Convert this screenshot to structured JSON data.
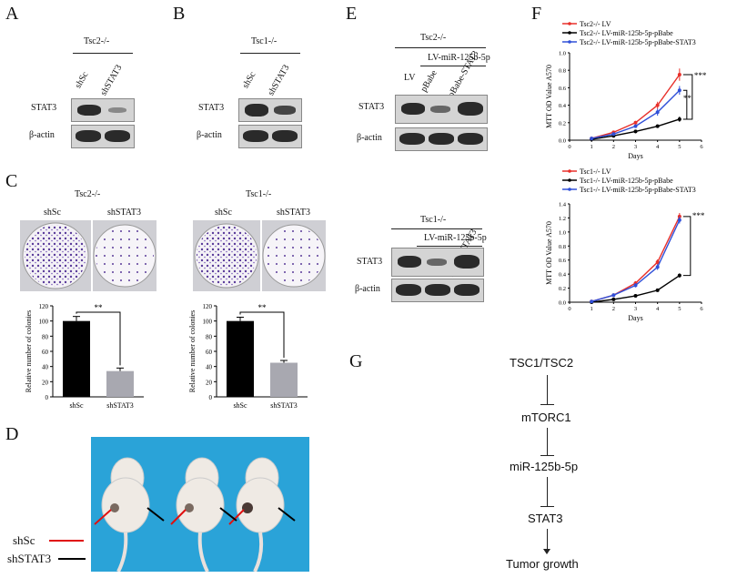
{
  "panels": {
    "A": "A",
    "B": "B",
    "C": "C",
    "D": "D",
    "E": "E",
    "F": "F",
    "G": "G"
  },
  "panelA": {
    "genotype": "Tsc2-/-",
    "lanes": [
      "shSc",
      "shSTAT3"
    ],
    "rows": [
      "STAT3",
      "β-actin"
    ]
  },
  "panelB": {
    "genotype": "Tsc1-/-",
    "lanes": [
      "shSc",
      "shSTAT3"
    ],
    "rows": [
      "STAT3",
      "β-actin"
    ]
  },
  "panelC": {
    "left": {
      "genotype": "Tsc2-/-",
      "dishes": [
        "shSc",
        "shSTAT3"
      ],
      "sig": "**"
    },
    "right": {
      "genotype": "Tsc1-/-",
      "dishes": [
        "shSc",
        "shSTAT3"
      ],
      "sig": "**"
    }
  },
  "panelD": {
    "legend": [
      "shSc",
      "shSTAT3"
    ]
  },
  "panelE": {
    "top": {
      "genotype": "Tsc2-/-",
      "group": "LV-miR-125b-5p",
      "lanes": [
        "LV",
        "pBabe",
        "pBabe-STAT3"
      ],
      "rows": [
        "STAT3",
        "β-actin"
      ]
    },
    "bottom": {
      "genotype": "Tsc1-/-",
      "group": "LV-miR-125b-5p",
      "lanes": [
        "LV",
        "pBabe",
        "pBabe-STAT3"
      ],
      "rows": [
        "STAT3",
        "β-actin"
      ]
    }
  },
  "panelG": {
    "nodes": [
      "TSC1/TSC2",
      "mTORC1",
      "miR-125b-5p",
      "STAT3",
      "Tumor growth"
    ]
  },
  "colors": {
    "shSc_bar": "#000000",
    "shSTAT3_bar": "#a8a8b0",
    "lv": "#e8302a",
    "pbabe": "#000000",
    "stat3": "#3050d8",
    "mouse_bg": "#2aa3d8",
    "red_arrow": "#e01010"
  },
  "chart_data": [
    {
      "id": "C-left",
      "type": "bar",
      "categories": [
        "shSc",
        "shSTAT3"
      ],
      "values": [
        100,
        34
      ],
      "errors": [
        6,
        4
      ],
      "ylabel": "Relative number of colonies",
      "ylim": [
        0,
        120
      ],
      "yticks": [
        0,
        20,
        40,
        60,
        80,
        100,
        120
      ],
      "annotation": "**"
    },
    {
      "id": "C-right",
      "type": "bar",
      "categories": [
        "shSc",
        "shSTAT3"
      ],
      "values": [
        100,
        45
      ],
      "errors": [
        5,
        3
      ],
      "ylabel": "Relative number of colonies",
      "ylim": [
        0,
        120
      ],
      "yticks": [
        0,
        20,
        40,
        60,
        80,
        100,
        120
      ],
      "annotation": "**"
    },
    {
      "id": "F-top",
      "type": "line",
      "x": [
        1,
        2,
        3,
        4,
        5
      ],
      "xlabel": "Days",
      "ylabel": "MTT OD Value A570",
      "xlim": [
        0,
        6
      ],
      "ylim": [
        0,
        1.0
      ],
      "xticks": [
        0,
        1,
        2,
        3,
        4,
        5,
        6
      ],
      "yticks": [
        0,
        0.2,
        0.4,
        0.6,
        0.8,
        1.0
      ],
      "series": [
        {
          "name": "Tsc2-/- LV",
          "values": [
            0.02,
            0.09,
            0.2,
            0.4,
            0.75
          ],
          "errors": [
            0.01,
            0.01,
            0.02,
            0.04,
            0.07
          ],
          "color": "#e8302a"
        },
        {
          "name": "Tsc2-/- LV-miR-125b-5p-pBabe",
          "values": [
            0.01,
            0.05,
            0.1,
            0.16,
            0.24
          ],
          "errors": [
            0.01,
            0.01,
            0.02,
            0.02,
            0.03
          ],
          "color": "#000000"
        },
        {
          "name": "Tsc2-/- LV-miR-125b-5p-pBabe-STAT3",
          "values": [
            0.02,
            0.07,
            0.16,
            0.32,
            0.57
          ],
          "errors": [
            0.01,
            0.01,
            0.02,
            0.04,
            0.05
          ],
          "color": "#3050d8"
        }
      ],
      "annotations": [
        "***",
        "**"
      ]
    },
    {
      "id": "F-bottom",
      "type": "line",
      "x": [
        1,
        2,
        3,
        4,
        5
      ],
      "xlabel": "Days",
      "ylabel": "MTT OD Value A570",
      "xlim": [
        0,
        6
      ],
      "ylim": [
        0,
        1.4
      ],
      "xticks": [
        0,
        1,
        2,
        3,
        4,
        5,
        6
      ],
      "yticks": [
        0,
        0.2,
        0.4,
        0.6,
        0.8,
        1.0,
        1.2,
        1.4
      ],
      "series": [
        {
          "name": "Tsc1-/- LV",
          "values": [
            0.01,
            0.1,
            0.27,
            0.57,
            1.22
          ],
          "errors": [
            0.01,
            0.01,
            0.03,
            0.04,
            0.05
          ],
          "color": "#e8302a"
        },
        {
          "name": "Tsc1-/- LV-miR-125b-5p-pBabe",
          "values": [
            0.0,
            0.04,
            0.09,
            0.17,
            0.38
          ],
          "errors": [
            0.0,
            0.01,
            0.01,
            0.02,
            0.03
          ],
          "color": "#000000"
        },
        {
          "name": "Tsc1-/- LV-miR-125b-5p-pBabe-STAT3",
          "values": [
            0.01,
            0.1,
            0.24,
            0.5,
            1.17
          ],
          "errors": [
            0.01,
            0.01,
            0.03,
            0.04,
            0.05
          ],
          "color": "#3050d8"
        }
      ],
      "annotations": [
        "***"
      ]
    }
  ]
}
